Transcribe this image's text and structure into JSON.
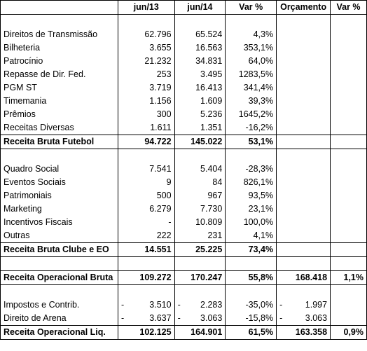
{
  "header": [
    "",
    "jun/13",
    "jun/14",
    "Var %",
    "Orçamento",
    "Var %"
  ],
  "rows": [
    {
      "type": "blank"
    },
    {
      "label": "Direitos de Transmissão",
      "c1": "62.796",
      "c2": "65.524",
      "c3": "4,3%",
      "c4": "",
      "c5": ""
    },
    {
      "label": "Bilheteria",
      "c1": "3.655",
      "c2": "16.563",
      "c3": "353,1%",
      "c4": "",
      "c5": ""
    },
    {
      "label": "Patrocínio",
      "c1": "21.232",
      "c2": "34.831",
      "c3": "64,0%",
      "c4": "",
      "c5": ""
    },
    {
      "label": "Repasse de Dir. Fed.",
      "c1": "253",
      "c2": "3.495",
      "c3": "1283,5%",
      "c4": "",
      "c5": ""
    },
    {
      "label": "PGM ST",
      "c1": "3.719",
      "c2": "16.413",
      "c3": "341,4%",
      "c4": "",
      "c5": ""
    },
    {
      "label": "Timemania",
      "c1": "1.156",
      "c2": "1.609",
      "c3": "39,3%",
      "c4": "",
      "c5": ""
    },
    {
      "label": "Prêmios",
      "c1": "300",
      "c2": "5.236",
      "c3": "1645,2%",
      "c4": "",
      "c5": ""
    },
    {
      "label": "Receitas Diversas",
      "c1": "1.611",
      "c2": "1.351",
      "c3": "-16,2%",
      "c4": "",
      "c5": ""
    },
    {
      "label": "Receita Bruta Futebol",
      "c1": "94.722",
      "c2": "145.022",
      "c3": "53,1%",
      "c4": "",
      "c5": "",
      "bold": true
    },
    {
      "type": "blank"
    },
    {
      "label": "Quadro Social",
      "c1": "7.541",
      "c2": "5.404",
      "c3": "-28,3%",
      "c4": "",
      "c5": ""
    },
    {
      "label": "Eventos Sociais",
      "c1": "9",
      "c2": "84",
      "c3": "826,1%",
      "c4": "",
      "c5": ""
    },
    {
      "label": "Patrimoniais",
      "c1": "500",
      "c2": "967",
      "c3": "93,5%",
      "c4": "",
      "c5": ""
    },
    {
      "label": "Marketing",
      "c1": "6.279",
      "c2": "7.730",
      "c3": "23,1%",
      "c4": "",
      "c5": ""
    },
    {
      "label": "Incentivos Fiscais",
      "c1": "-",
      "c2": "10.809",
      "c3": "100,0%",
      "c4": "",
      "c5": ""
    },
    {
      "label": "Outras",
      "c1": "222",
      "c2": "231",
      "c3": "4,1%",
      "c4": "",
      "c5": ""
    },
    {
      "label": "Receita Bruta Clube e EO",
      "c1": "14.551",
      "c2": "25.225",
      "c3": "73,4%",
      "c4": "",
      "c5": "",
      "bold": true
    },
    {
      "type": "blank"
    },
    {
      "label": "Receita Operacional Bruta",
      "c1": "109.272",
      "c2": "170.247",
      "c3": "55,8%",
      "c4": "168.418",
      "c5": "1,1%",
      "bold": true
    },
    {
      "type": "blank"
    },
    {
      "label": "Impostos e Contrib.",
      "c1": "3.510",
      "c2": "2.283",
      "c3": "-35,0%",
      "c4": "1.997",
      "c5": "",
      "dash": true
    },
    {
      "label": "Direito de Arena",
      "c1": "3.637",
      "c2": "3.063",
      "c3": "-15,8%",
      "c4": "3.063",
      "c5": "",
      "dash": true
    },
    {
      "label": "Receita Operacional Liq.",
      "c1": "102.125",
      "c2": "164.901",
      "c3": "61,5%",
      "c4": "163.358",
      "c5": "0,9%",
      "bold": true
    }
  ],
  "dash_char": "-"
}
